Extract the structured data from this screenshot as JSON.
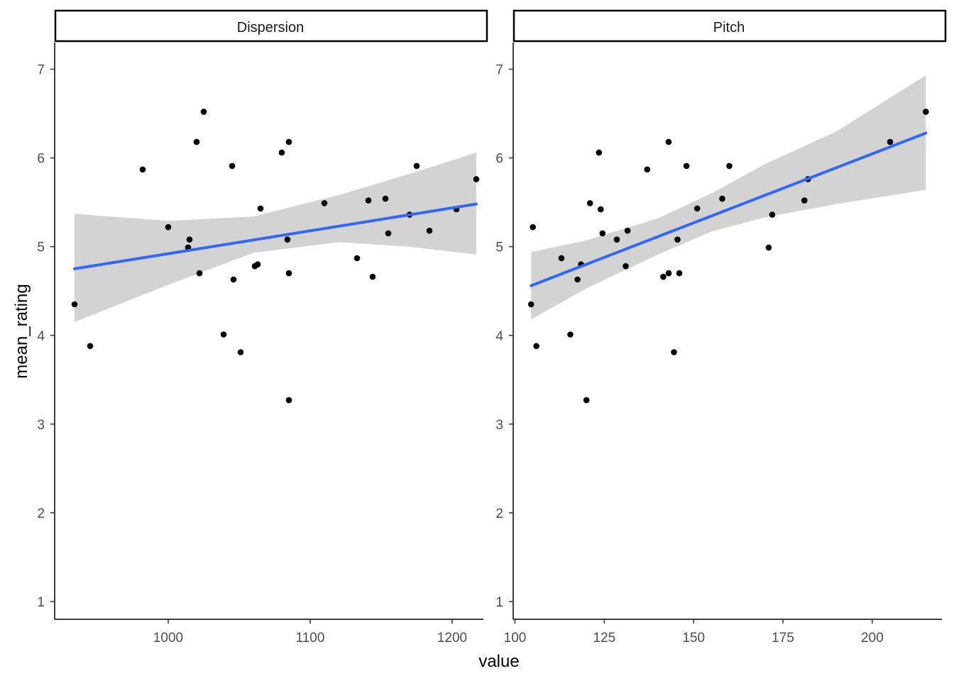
{
  "chart_data": {
    "type": "scatter",
    "xlabel": "value",
    "ylabel": "mean_rating",
    "ylim": [
      0.8,
      7.3
    ],
    "y_ticks": [
      "1",
      "2",
      "3",
      "4",
      "5",
      "6",
      "7"
    ],
    "grid": false,
    "colors": {
      "points": "#000000",
      "fit_line": "#3366FF",
      "ribbon": "#D3D3D3",
      "strip_fill": "#FFFFFF"
    },
    "panels": [
      {
        "name": "Dispersion",
        "xlim": [
          920,
          1222
        ],
        "x_ticks": [
          "1000",
          "1100",
          "1200"
        ],
        "points": [
          [
            934,
            4.35
          ],
          [
            945,
            3.88
          ],
          [
            982,
            5.87
          ],
          [
            1000,
            5.22
          ],
          [
            1014,
            4.99
          ],
          [
            1015,
            5.08
          ],
          [
            1020,
            6.18
          ],
          [
            1022,
            4.7
          ],
          [
            1025,
            6.52
          ],
          [
            1039,
            4.01
          ],
          [
            1045,
            5.91
          ],
          [
            1046,
            4.63
          ],
          [
            1051,
            3.81
          ],
          [
            1061,
            4.78
          ],
          [
            1063,
            4.8
          ],
          [
            1065,
            5.43
          ],
          [
            1080,
            6.06
          ],
          [
            1084,
            5.08
          ],
          [
            1085,
            6.18
          ],
          [
            1085,
            3.27
          ],
          [
            1085,
            4.7
          ],
          [
            1110,
            5.49
          ],
          [
            1133,
            4.87
          ],
          [
            1141,
            5.52
          ],
          [
            1144,
            4.66
          ],
          [
            1153,
            5.54
          ],
          [
            1155,
            5.15
          ],
          [
            1170,
            5.36
          ],
          [
            1175,
            5.91
          ],
          [
            1184,
            5.18
          ],
          [
            1203,
            5.42
          ],
          [
            1217,
            5.76
          ]
        ],
        "fit": {
          "x": [
            934,
            1217
          ],
          "y": [
            4.75,
            5.48
          ]
        },
        "ci": {
          "x": [
            934,
            1000,
            1060,
            1120,
            1170,
            1217
          ],
          "lower": [
            4.15,
            4.57,
            4.93,
            5.05,
            5.0,
            4.91
          ],
          "upper": [
            5.37,
            5.29,
            5.34,
            5.58,
            5.82,
            6.06
          ]
        }
      },
      {
        "name": "Pitch",
        "xlim": [
          99.5,
          219.5
        ],
        "x_ticks": [
          "100",
          "125",
          "150",
          "175",
          "200"
        ],
        "points": [
          [
            104.5,
            4.35
          ],
          [
            105,
            5.22
          ],
          [
            106,
            3.88
          ],
          [
            113,
            4.87
          ],
          [
            115.5,
            4.01
          ],
          [
            117.5,
            4.63
          ],
          [
            118.5,
            4.8
          ],
          [
            120,
            3.27
          ],
          [
            121,
            5.49
          ],
          [
            123.5,
            6.06
          ],
          [
            124,
            5.42
          ],
          [
            124.5,
            5.15
          ],
          [
            128.5,
            5.08
          ],
          [
            131,
            4.78
          ],
          [
            131.5,
            5.18
          ],
          [
            137,
            5.87
          ],
          [
            141.5,
            4.66
          ],
          [
            143,
            4.7
          ],
          [
            143,
            6.18
          ],
          [
            144.5,
            3.81
          ],
          [
            145.5,
            5.08
          ],
          [
            146,
            4.7
          ],
          [
            148,
            5.91
          ],
          [
            151,
            5.43
          ],
          [
            158,
            5.54
          ],
          [
            160,
            5.91
          ],
          [
            171,
            4.99
          ],
          [
            172,
            5.36
          ],
          [
            181,
            5.52
          ],
          [
            182,
            5.76
          ],
          [
            205,
            6.18
          ],
          [
            215,
            6.52
          ]
        ],
        "fit": {
          "x": [
            104.5,
            215
          ],
          "y": [
            4.56,
            6.28
          ]
        },
        "ci": {
          "x": [
            104.5,
            120,
            140,
            155,
            170,
            190,
            215
          ],
          "lower": [
            4.18,
            4.53,
            4.91,
            5.17,
            5.33,
            5.48,
            5.64
          ],
          "upper": [
            4.94,
            5.07,
            5.32,
            5.6,
            5.93,
            6.3,
            6.93
          ]
        }
      }
    ]
  }
}
